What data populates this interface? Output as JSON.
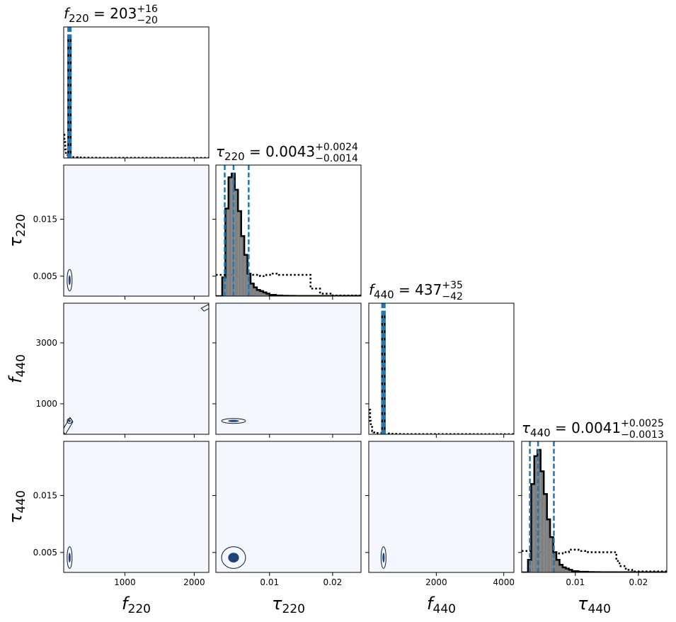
{
  "chart_data": {
    "type": "corner",
    "colors": {
      "hist_fill": "#808080",
      "hist_edge": "#000000",
      "prior_line": "#000000",
      "quantile_line": "#1f77b4",
      "density_bg": "#f4f8fe",
      "density_peak": "#08306b",
      "contour": "#0a1a33"
    },
    "parameters": [
      {
        "key": "f220",
        "symbol": "f",
        "sub": "220",
        "range": [
          118,
          2210
        ],
        "ticks": [
          1000,
          2000
        ],
        "tick_labels": [
          "1000",
          "2000"
        ],
        "title_value": "203",
        "title_plus": "+16",
        "title_minus": "−20",
        "quantiles": [
          183,
          203,
          219
        ],
        "histogram": {
          "edges": [
            183,
            203,
            219
          ],
          "counts": [
            1000,
            1000
          ]
        },
        "prior": {
          "x": [
            118,
            128,
            140,
            150,
            175,
            200,
            240,
            280,
            320,
            400,
            500,
            600,
            800,
            1000,
            1500,
            2000,
            2210
          ],
          "y": [
            190,
            130,
            70,
            25,
            15,
            9,
            7,
            5,
            4,
            3,
            2.5,
            2,
            1.5,
            1,
            0.6,
            0.4,
            0.3
          ]
        }
      },
      {
        "key": "tau220",
        "symbol": "τ",
        "sub": "220",
        "range": [
          0.0015,
          0.0245
        ],
        "ticks": [
          0.005,
          0.015
        ],
        "tick_labels": [
          "0.005",
          "0.015"
        ],
        "x_ticks": [
          0.01,
          0.02
        ],
        "x_tick_labels": [
          "0.01",
          "0.02"
        ],
        "title_value": "0.0043",
        "title_plus": "+0.0024",
        "title_minus": "−0.0014",
        "quantiles": [
          0.0029,
          0.0043,
          0.0067
        ],
        "histogram": {
          "edges": [
            0.0015,
            0.002,
            0.0025,
            0.003,
            0.0035,
            0.004,
            0.0045,
            0.005,
            0.0055,
            0.006,
            0.0065,
            0.007,
            0.0075,
            0.008,
            0.0085,
            0.009,
            0.0095,
            0.01,
            0.0105,
            0.011,
            0.0115,
            0.012,
            0.013,
            0.014,
            0.016,
            0.0245
          ],
          "counts": [
            0,
            0,
            15,
            70,
            95,
            98,
            85,
            68,
            48,
            33,
            18,
            10,
            7,
            5,
            4,
            3,
            2,
            1,
            1,
            0.5,
            0.5,
            0.3,
            0.2,
            0.1,
            0.1
          ]
        },
        "prior": {
          "x": [
            0.0015,
            0.003,
            0.005,
            0.006,
            0.007,
            0.0085,
            0.0095,
            0.0105,
            0.0115,
            0.013,
            0.0145,
            0.016,
            0.0165,
            0.018,
            0.02,
            0.0245
          ],
          "y": [
            17,
            17,
            16,
            17,
            17,
            16,
            17,
            18,
            17,
            17,
            17,
            17,
            6,
            2,
            0.5,
            0.3
          ]
        }
      },
      {
        "key": "f440",
        "symbol": "f",
        "sub": "440",
        "range": [
          0,
          4300
        ],
        "ticks": [
          1000,
          3000
        ],
        "tick_labels": [
          "1000",
          "3000"
        ],
        "x_ticks": [
          2000,
          4000
        ],
        "x_tick_labels": [
          "2000",
          "4000"
        ],
        "title_value": "437",
        "title_plus": "+35",
        "title_minus": "−42",
        "quantiles": [
          395,
          437,
          472
        ],
        "histogram": {
          "edges": [
            395,
            437,
            472
          ],
          "counts": [
            1000,
            1000
          ]
        },
        "prior": {
          "x": [
            0,
            40,
            60,
            100,
            140,
            200,
            400,
            600,
            800,
            1000,
            2000,
            3000,
            4300
          ],
          "y": [
            200,
            110,
            60,
            25,
            15,
            10,
            6,
            4,
            3,
            2,
            1,
            0.5,
            0.3
          ]
        }
      },
      {
        "key": "tau440",
        "symbol": "τ",
        "sub": "440",
        "range": [
          0.0015,
          0.0245
        ],
        "ticks": [
          0.005,
          0.015
        ],
        "tick_labels": [
          "0.005",
          "0.015"
        ],
        "x_ticks": [
          0.01,
          0.02
        ],
        "x_tick_labels": [
          "0.01",
          "0.02"
        ],
        "title_value": "0.0041",
        "title_plus": "+0.0025",
        "title_minus": "−0.0013",
        "quantiles": [
          0.0028,
          0.0041,
          0.0066
        ],
        "histogram": {
          "edges": [
            0.0015,
            0.002,
            0.0025,
            0.003,
            0.0035,
            0.004,
            0.0045,
            0.005,
            0.0055,
            0.006,
            0.0065,
            0.007,
            0.0075,
            0.008,
            0.0085,
            0.009,
            0.0095,
            0.01,
            0.0105,
            0.011,
            0.012,
            0.013,
            0.014,
            0.016,
            0.0245
          ],
          "counts": [
            0,
            0,
            10,
            70,
            92,
            97,
            80,
            62,
            42,
            28,
            16,
            10,
            6,
            4,
            3,
            2,
            1,
            1,
            0.5,
            0.5,
            0.3,
            0.2,
            0.1,
            0.1
          ]
        },
        "prior": {
          "x": [
            0.0015,
            0.003,
            0.005,
            0.007,
            0.008,
            0.009,
            0.0105,
            0.012,
            0.014,
            0.015,
            0.0165,
            0.017,
            0.018,
            0.019,
            0.0245
          ],
          "y": [
            17,
            16,
            16,
            15,
            16,
            18,
            17,
            16,
            16,
            16,
            9,
            5,
            2,
            0.8,
            0.3
          ]
        }
      }
    ]
  }
}
